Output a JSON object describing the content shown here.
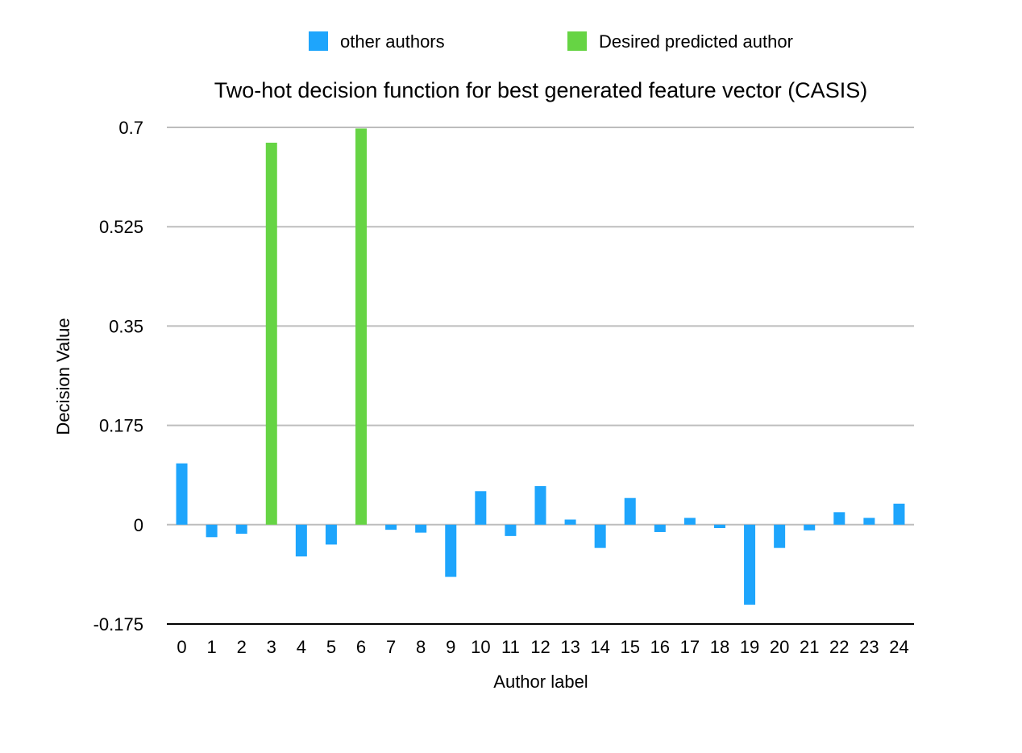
{
  "chart_data": {
    "type": "bar",
    "title": "Two-hot decision function for best generated feature vector (CASIS)",
    "xlabel": "Author label",
    "ylabel": "Decision Value",
    "ylim": [
      -0.175,
      0.7
    ],
    "yticks": [
      "0.7",
      "0.525",
      "0.35",
      "0.175",
      "0",
      "-0.175"
    ],
    "ytick_values": [
      0.7,
      0.525,
      0.35,
      0.175,
      0,
      -0.175
    ],
    "grid": true,
    "legend_position": "top",
    "categories": [
      "0",
      "1",
      "2",
      "3",
      "4",
      "5",
      "6",
      "7",
      "8",
      "9",
      "10",
      "11",
      "12",
      "13",
      "14",
      "15",
      "16",
      "17",
      "18",
      "19",
      "20",
      "21",
      "22",
      "23",
      "24"
    ],
    "series": [
      {
        "name": "other authors",
        "color": "#1EA5FC",
        "values": [
          0.108,
          -0.022,
          -0.016,
          null,
          -0.056,
          -0.035,
          null,
          -0.009,
          -0.014,
          -0.092,
          0.059,
          -0.02,
          0.068,
          0.009,
          -0.041,
          0.047,
          -0.013,
          0.012,
          -0.006,
          -0.141,
          -0.041,
          -0.01,
          0.022,
          0.012,
          0.037
        ]
      },
      {
        "name": "Desired predicted author",
        "color": "#66D444",
        "values": [
          null,
          null,
          null,
          0.673,
          null,
          null,
          0.698,
          null,
          null,
          null,
          null,
          null,
          null,
          null,
          null,
          null,
          null,
          null,
          null,
          null,
          null,
          null,
          null,
          null,
          null
        ]
      }
    ]
  }
}
